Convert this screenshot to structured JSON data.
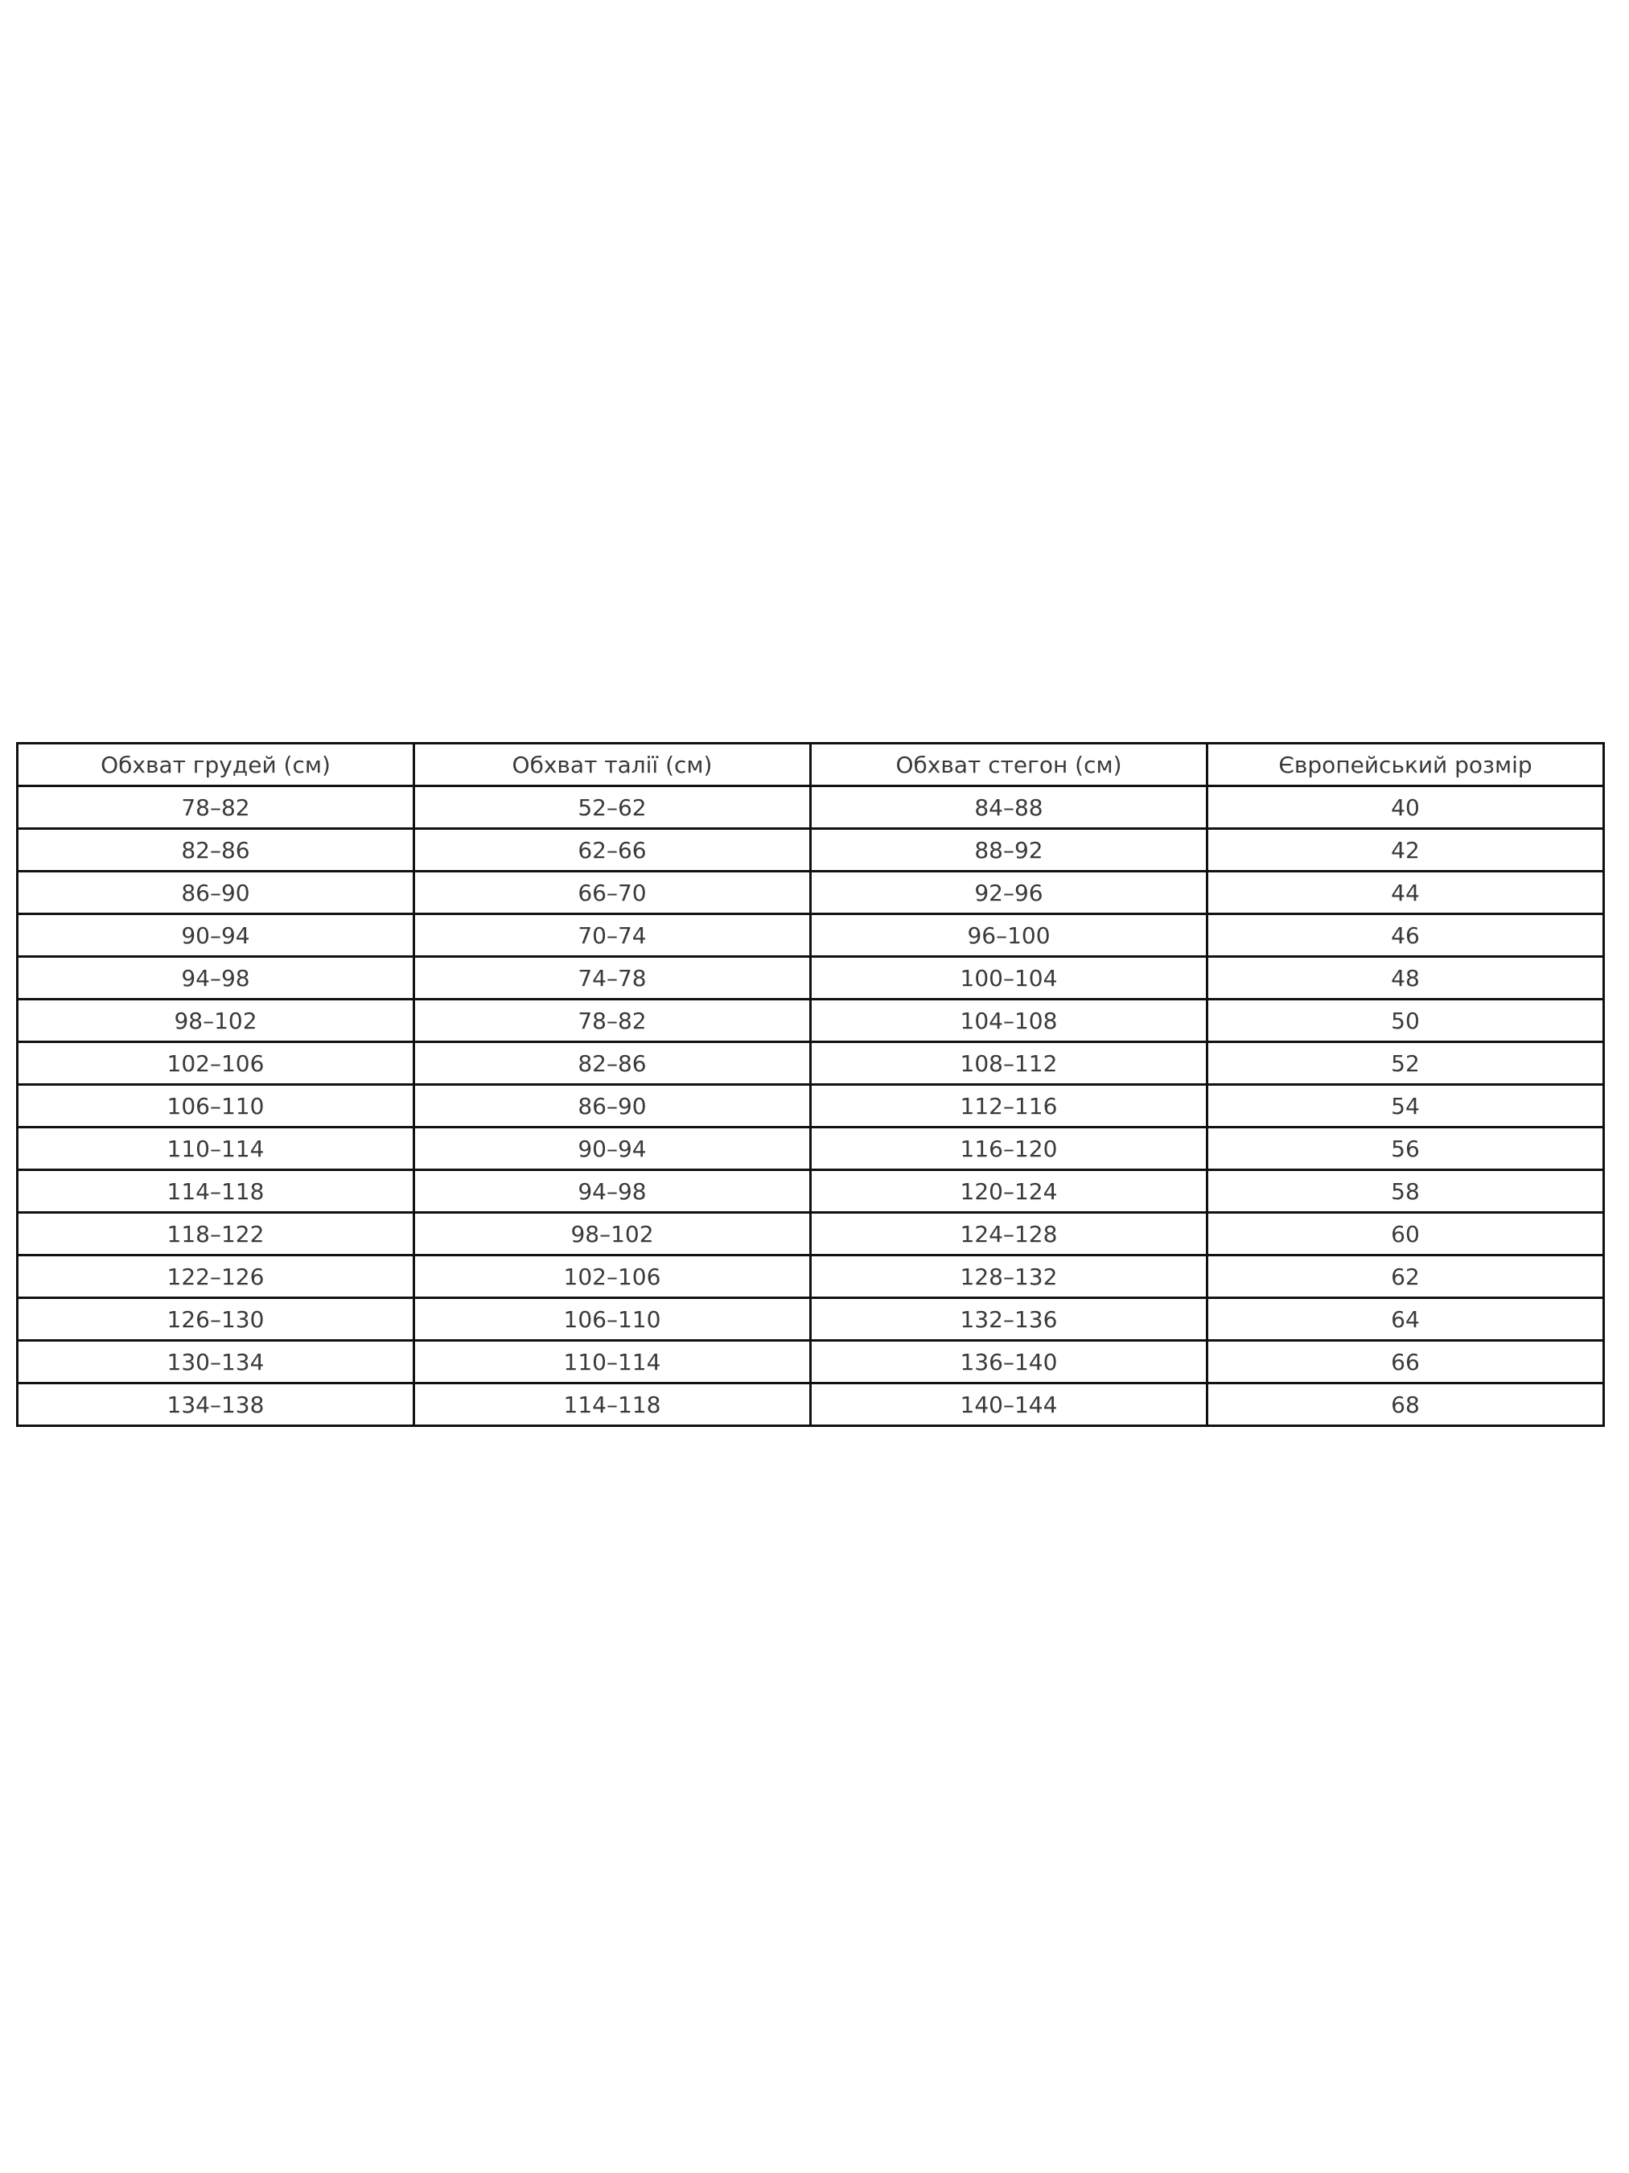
{
  "page": {
    "background_color": "#ffffff"
  },
  "chart_data": {
    "type": "table",
    "title": "",
    "columns": [
      "Обхват грудей (см)",
      "Обхват талії (см)",
      "Обхват стегон (см)",
      "Європейський розмір"
    ],
    "rows": [
      [
        "78–82",
        "52–62",
        "84–88",
        "40"
      ],
      [
        "82–86",
        "62–66",
        "88–92",
        "42"
      ],
      [
        "86–90",
        "66–70",
        "92–96",
        "44"
      ],
      [
        "90–94",
        "70–74",
        "96–100",
        "46"
      ],
      [
        "94–98",
        "74–78",
        "100–104",
        "48"
      ],
      [
        "98–102",
        "78–82",
        "104–108",
        "50"
      ],
      [
        "102–106",
        "82–86",
        "108–112",
        "52"
      ],
      [
        "106–110",
        "86–90",
        "112–116",
        "54"
      ],
      [
        "110–114",
        "90–94",
        "116–120",
        "56"
      ],
      [
        "114–118",
        "94–98",
        "120–124",
        "58"
      ],
      [
        "118–122",
        "98–102",
        "124–128",
        "60"
      ],
      [
        "122–126",
        "102–106",
        "128–132",
        "62"
      ],
      [
        "126–130",
        "106–110",
        "132–136",
        "64"
      ],
      [
        "130–134",
        "110–114",
        "136–140",
        "66"
      ],
      [
        "134–138",
        "114–118",
        "140–144",
        "68"
      ]
    ],
    "layout": {
      "border_color": "#111111",
      "text_color": "#3a3a3a",
      "grid": "on",
      "column_width_pct": [
        25,
        25,
        25,
        25
      ]
    }
  }
}
